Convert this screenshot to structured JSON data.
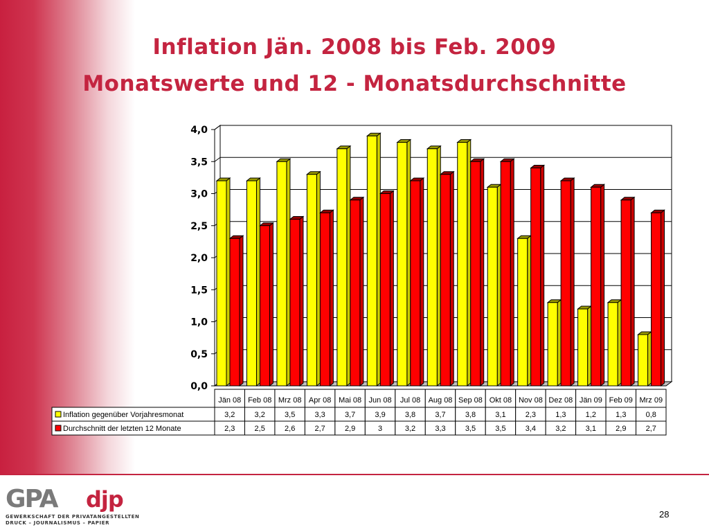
{
  "slide": {
    "title_line1": "Inflation Jän. 2008 bis Feb. 2009",
    "title_line2": "Monatswerte und 12 - Monatsdurchschnitte",
    "page_number": "28",
    "logo_main": "GPA",
    "logo_djp": "djp",
    "logo_sub1": "GEWERKSCHAFT DER PRIVATANGESTELLTEN",
    "logo_sub2": "DRUCK – JOURNALISMUS – PAPIER"
  },
  "colors": {
    "accent": "#c42440",
    "series1": "#ffff00",
    "series2": "#ff0000"
  },
  "chart_data": {
    "type": "bar",
    "categories": [
      "Jän 08",
      "Feb 08",
      "Mrz 08",
      "Apr 08",
      "Mai 08",
      "Jun 08",
      "Jul 08",
      "Aug 08",
      "Sep 08",
      "Okt 08",
      "Nov 08",
      "Dez 08",
      "Jän 09",
      "Feb 09",
      "Mrz 09"
    ],
    "series": [
      {
        "name": "Inflation gegenüber Vorjahresmonat",
        "values": [
          3.2,
          3.2,
          3.5,
          3.3,
          3.7,
          3.9,
          3.8,
          3.7,
          3.8,
          3.1,
          2.3,
          1.3,
          1.2,
          1.3,
          0.8
        ],
        "labels": [
          "3,2",
          "3,2",
          "3,5",
          "3,3",
          "3,7",
          "3,9",
          "3,8",
          "3,7",
          "3,8",
          "3,1",
          "2,3",
          "1,3",
          "1,2",
          "1,3",
          "0,8"
        ]
      },
      {
        "name": "Durchschnitt der letzten 12 Monate",
        "values": [
          2.3,
          2.5,
          2.6,
          2.7,
          2.9,
          3.0,
          3.2,
          3.3,
          3.5,
          3.5,
          3.4,
          3.2,
          3.1,
          2.9,
          2.7
        ],
        "labels": [
          "2,3",
          "2,5",
          "2,6",
          "2,7",
          "2,9",
          "3",
          "3,2",
          "3,3",
          "3,5",
          "3,5",
          "3,4",
          "3,2",
          "3,1",
          "2,9",
          "2,7"
        ]
      }
    ],
    "yticks": [
      "0,0",
      "0,5",
      "1,0",
      "1,5",
      "2,0",
      "2,5",
      "3,0",
      "3,5",
      "4,0"
    ],
    "ylim": [
      0,
      4
    ],
    "grid": true,
    "legend": "data-table below chart"
  }
}
